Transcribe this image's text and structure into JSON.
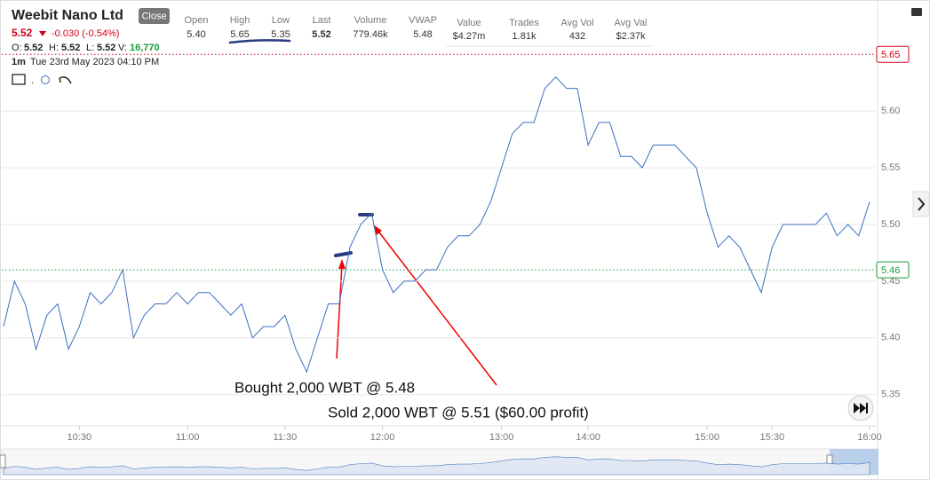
{
  "header": {
    "title": "Weebit Nano Ltd",
    "button": "Close",
    "price": "5.52",
    "change": "-0.030 (-0.54%)",
    "ohlc": [
      "O:",
      "5.52",
      "H:",
      "5.52",
      "L:",
      "5.52",
      "V:",
      "16,770"
    ],
    "interval": "1m",
    "datetime": "Tue 23rd May 2023 04:10 PM",
    "stats": [
      {
        "label": "Open",
        "value": "5.40"
      },
      {
        "label": "High",
        "value": "5.65"
      },
      {
        "label": "Low",
        "value": "5.35"
      },
      {
        "label": "Last",
        "value": "5.52"
      },
      {
        "label": "Volume",
        "value": "779.46k"
      },
      {
        "label": "VWAP",
        "value": "5.48"
      },
      {
        "label": "Value",
        "value": "$4.27m"
      },
      {
        "label": "Trades",
        "value": "1.81k"
      },
      {
        "label": "Avg Vol",
        "value": "432"
      },
      {
        "label": "Avg Val",
        "value": "$2.37k"
      }
    ]
  },
  "chart_data": {
    "type": "line",
    "x": [
      "10:09",
      "10:12",
      "10:15",
      "10:18",
      "10:21",
      "10:24",
      "10:27",
      "10:30",
      "10:33",
      "10:36",
      "10:39",
      "10:42",
      "10:45",
      "10:48",
      "10:51",
      "10:54",
      "10:57",
      "11:00",
      "11:03",
      "11:07",
      "11:10",
      "11:13",
      "11:17",
      "11:20",
      "11:23",
      "11:27",
      "11:30",
      "11:33",
      "11:37",
      "11:40",
      "11:43",
      "11:47",
      "11:50",
      "11:53",
      "11:57",
      "12:00",
      "12:05",
      "12:11",
      "12:16",
      "12:22",
      "12:27",
      "12:33",
      "12:38",
      "12:44",
      "12:49",
      "12:55",
      "13:00",
      "13:07",
      "13:15",
      "13:22",
      "13:30",
      "13:37",
      "13:45",
      "13:52",
      "14:00",
      "14:05",
      "14:11",
      "14:16",
      "14:22",
      "14:27",
      "14:33",
      "14:38",
      "14:44",
      "14:49",
      "14:55",
      "15:00",
      "15:05",
      "15:10",
      "15:15",
      "15:20",
      "15:25",
      "15:30",
      "15:33",
      "15:37",
      "15:40",
      "15:43",
      "15:47",
      "15:50",
      "15:53",
      "15:57",
      "16:00"
    ],
    "series": [
      {
        "color": "#3b6fc0",
        "values": [
          5.41,
          5.45,
          5.43,
          5.39,
          5.42,
          5.43,
          5.39,
          5.41,
          5.44,
          5.43,
          5.44,
          5.46,
          5.4,
          5.42,
          5.43,
          5.43,
          5.44,
          5.43,
          5.44,
          5.44,
          5.43,
          5.42,
          5.43,
          5.4,
          5.41,
          5.41,
          5.42,
          5.39,
          5.37,
          5.4,
          5.43,
          5.43,
          5.48,
          5.5,
          5.51,
          5.46,
          5.44,
          5.45,
          5.45,
          5.46,
          5.46,
          5.48,
          5.49,
          5.49,
          5.5,
          5.52,
          5.55,
          5.58,
          5.59,
          5.59,
          5.62,
          5.63,
          5.62,
          5.62,
          5.57,
          5.59,
          5.59,
          5.56,
          5.56,
          5.55,
          5.57,
          5.57,
          5.57,
          5.56,
          5.55,
          5.51,
          5.48,
          5.49,
          5.48,
          5.46,
          5.44,
          5.48,
          5.5,
          5.5,
          5.5,
          5.5,
          5.51,
          5.49,
          5.5,
          5.49,
          5.52
        ]
      }
    ],
    "xticks": [
      "10:30",
      "11:00",
      "11:30",
      "12:00",
      "13:00",
      "14:00",
      "15:00",
      "15:30",
      "16:00"
    ],
    "ylim": [
      5.324,
      5.694
    ],
    "yticks": [
      5.35,
      {
        "value": 5.4,
        "label": "5.40"
      },
      5.45,
      {
        "value": 5.5,
        "label": "5.50"
      },
      5.55,
      {
        "value": 5.6,
        "label": "5.60"
      }
    ],
    "grid": true,
    "price_lines": [
      {
        "value": 5.65,
        "color": "#d0021b"
      },
      {
        "value": 5.46,
        "color": "#1a9a3a"
      }
    ],
    "annotations": [
      "Bought 2,000 WBT @ 5.48",
      "Sold 2,000 WBT @ 5.51 ($60.00 profit)"
    ]
  }
}
